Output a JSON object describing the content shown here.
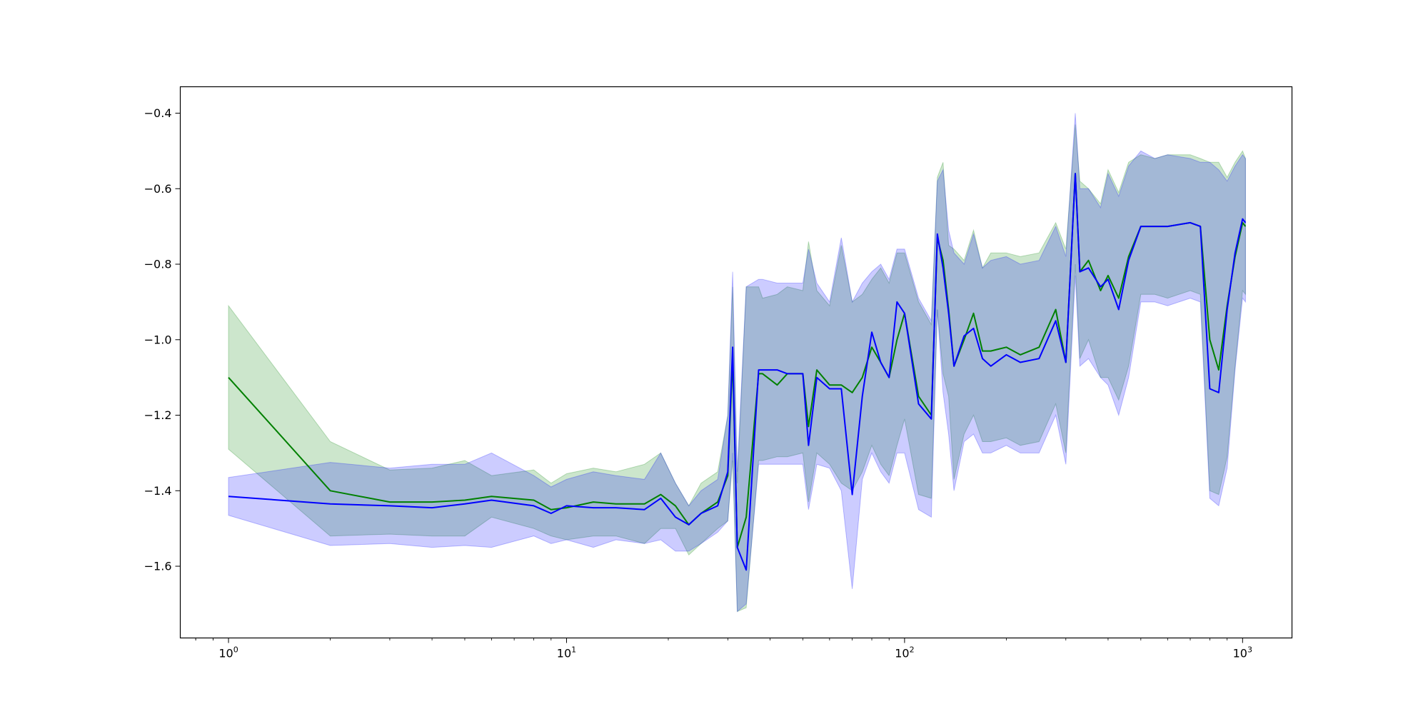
{
  "chart_data": {
    "type": "line",
    "title": "",
    "xlabel": "",
    "ylabel": "",
    "xscale": "log",
    "xlim": [
      0.72,
      1400
    ],
    "ylim": [
      -1.79,
      -0.33
    ],
    "grid": false,
    "x_ticks": [
      {
        "value": 1,
        "base": "10",
        "exp": "0"
      },
      {
        "value": 10,
        "base": "10",
        "exp": "1"
      },
      {
        "value": 100,
        "base": "10",
        "exp": "2"
      },
      {
        "value": 1000,
        "base": "10",
        "exp": "3"
      }
    ],
    "y_ticks": [
      {
        "value": -1.6,
        "label": "−1.6"
      },
      {
        "value": -1.4,
        "label": "−1.4"
      },
      {
        "value": -1.2,
        "label": "−1.2"
      },
      {
        "value": -1.0,
        "label": "−1.0"
      },
      {
        "value": -0.8,
        "label": "−0.8"
      },
      {
        "value": -0.6,
        "label": "−0.6"
      },
      {
        "value": -0.4,
        "label": "−0.4"
      }
    ],
    "series": [
      {
        "color": "#008000",
        "band_color": "#008000",
        "x": [
          1,
          2,
          3,
          4,
          5,
          6,
          8,
          9,
          10,
          12,
          14,
          17,
          19,
          21,
          23,
          25,
          28,
          30,
          31,
          32,
          34,
          37,
          38,
          42,
          45,
          50,
          52,
          55,
          60,
          65,
          70,
          75,
          80,
          85,
          90,
          95,
          100,
          110,
          120,
          125,
          130,
          135,
          140,
          150,
          160,
          170,
          180,
          200,
          220,
          250,
          280,
          300,
          320,
          330,
          350,
          380,
          400,
          430,
          460,
          500,
          550,
          600,
          700,
          750,
          800,
          850,
          900,
          950,
          1000,
          1020
        ],
        "mean": [
          -1.1,
          -1.4,
          -1.43,
          -1.43,
          -1.425,
          -1.415,
          -1.425,
          -1.45,
          -1.445,
          -1.43,
          -1.435,
          -1.435,
          -1.41,
          -1.44,
          -1.49,
          -1.46,
          -1.43,
          -1.36,
          -1.05,
          -1.55,
          -1.47,
          -1.09,
          -1.09,
          -1.12,
          -1.09,
          -1.09,
          -1.23,
          -1.08,
          -1.12,
          -1.12,
          -1.14,
          -1.1,
          -1.02,
          -1.06,
          -1.1,
          -1.0,
          -0.93,
          -1.15,
          -1.2,
          -0.73,
          -0.79,
          -0.92,
          -1.07,
          -1.0,
          -0.93,
          -1.03,
          -1.03,
          -1.02,
          -1.04,
          -1.02,
          -0.92,
          -1.06,
          -0.56,
          -0.82,
          -0.79,
          -0.87,
          -0.83,
          -0.89,
          -0.78,
          -0.7,
          -0.7,
          -0.7,
          -0.69,
          -0.7,
          -1.0,
          -1.08,
          -0.91,
          -0.78,
          -0.69,
          -0.7
        ],
        "upper": [
          -0.91,
          -1.27,
          -1.345,
          -1.34,
          -1.32,
          -1.36,
          -1.345,
          -1.38,
          -1.355,
          -1.34,
          -1.35,
          -1.33,
          -1.3,
          -1.38,
          -1.44,
          -1.38,
          -1.35,
          -1.2,
          -0.86,
          -1.38,
          -0.86,
          -0.86,
          -0.89,
          -0.88,
          -0.86,
          -0.87,
          -0.74,
          -0.87,
          -0.91,
          -0.75,
          -0.9,
          -0.88,
          -0.84,
          -0.81,
          -0.85,
          -0.77,
          -0.77,
          -0.9,
          -0.96,
          -0.57,
          -0.53,
          -0.75,
          -0.76,
          -0.79,
          -0.71,
          -0.81,
          -0.77,
          -0.77,
          -0.78,
          -0.77,
          -0.69,
          -0.76,
          -0.43,
          -0.58,
          -0.6,
          -0.64,
          -0.55,
          -0.61,
          -0.53,
          -0.51,
          -0.52,
          -0.51,
          -0.51,
          -0.52,
          -0.53,
          -0.53,
          -0.57,
          -0.53,
          -0.5,
          -0.52
        ],
        "lower": [
          -1.29,
          -1.52,
          -1.515,
          -1.52,
          -1.52,
          -1.47,
          -1.5,
          -1.52,
          -1.53,
          -1.52,
          -1.52,
          -1.54,
          -1.5,
          -1.5,
          -1.57,
          -1.54,
          -1.5,
          -1.48,
          -1.32,
          -1.72,
          -1.71,
          -1.32,
          -1.32,
          -1.31,
          -1.31,
          -1.3,
          -1.43,
          -1.3,
          -1.33,
          -1.38,
          -1.4,
          -1.35,
          -1.28,
          -1.33,
          -1.36,
          -1.28,
          -1.21,
          -1.41,
          -1.42,
          -0.92,
          -1.09,
          -1.15,
          -1.37,
          -1.25,
          -1.2,
          -1.27,
          -1.27,
          -1.26,
          -1.28,
          -1.27,
          -1.17,
          -1.3,
          -0.8,
          -1.05,
          -1.0,
          -1.1,
          -1.1,
          -1.16,
          -1.07,
          -0.88,
          -0.88,
          -0.89,
          -0.87,
          -0.88,
          -1.4,
          -1.41,
          -1.31,
          -1.07,
          -0.87,
          -0.88
        ]
      },
      {
        "color": "#0000ff",
        "band_color": "#0000ff",
        "x": [
          1,
          2,
          3,
          4,
          5,
          6,
          8,
          9,
          10,
          12,
          14,
          17,
          19,
          21,
          23,
          25,
          28,
          30,
          31,
          32,
          34,
          37,
          38,
          42,
          45,
          50,
          52,
          55,
          60,
          65,
          70,
          75,
          80,
          85,
          90,
          95,
          100,
          110,
          120,
          125,
          130,
          135,
          140,
          150,
          160,
          170,
          180,
          200,
          220,
          250,
          280,
          300,
          320,
          330,
          350,
          380,
          400,
          430,
          460,
          500,
          550,
          600,
          700,
          750,
          800,
          850,
          900,
          950,
          1000,
          1020
        ],
        "mean": [
          -1.415,
          -1.435,
          -1.44,
          -1.445,
          -1.435,
          -1.425,
          -1.44,
          -1.46,
          -1.44,
          -1.445,
          -1.445,
          -1.45,
          -1.42,
          -1.47,
          -1.49,
          -1.46,
          -1.44,
          -1.35,
          -1.02,
          -1.55,
          -1.61,
          -1.08,
          -1.08,
          -1.08,
          -1.09,
          -1.09,
          -1.28,
          -1.1,
          -1.13,
          -1.13,
          -1.41,
          -1.15,
          -0.98,
          -1.06,
          -1.1,
          -0.9,
          -0.93,
          -1.17,
          -1.21,
          -0.72,
          -0.81,
          -0.93,
          -1.07,
          -0.99,
          -0.97,
          -1.05,
          -1.07,
          -1.04,
          -1.06,
          -1.05,
          -0.95,
          -1.06,
          -0.56,
          -0.82,
          -0.81,
          -0.86,
          -0.84,
          -0.92,
          -0.79,
          -0.7,
          -0.7,
          -0.7,
          -0.69,
          -0.7,
          -1.13,
          -1.14,
          -0.92,
          -0.77,
          -0.68,
          -0.69
        ],
        "upper": [
          -1.365,
          -1.325,
          -1.34,
          -1.33,
          -1.33,
          -1.3,
          -1.36,
          -1.39,
          -1.37,
          -1.35,
          -1.36,
          -1.37,
          -1.3,
          -1.38,
          -1.44,
          -1.4,
          -1.37,
          -1.2,
          -0.82,
          -1.35,
          -0.86,
          -0.84,
          -0.84,
          -0.85,
          -0.85,
          -0.85,
          -0.76,
          -0.85,
          -0.9,
          -0.73,
          -0.9,
          -0.85,
          -0.82,
          -0.8,
          -0.84,
          -0.76,
          -0.76,
          -0.89,
          -0.95,
          -0.58,
          -0.55,
          -0.71,
          -0.77,
          -0.8,
          -0.72,
          -0.81,
          -0.79,
          -0.78,
          -0.8,
          -0.79,
          -0.7,
          -0.78,
          -0.4,
          -0.6,
          -0.6,
          -0.65,
          -0.56,
          -0.62,
          -0.54,
          -0.5,
          -0.52,
          -0.51,
          -0.52,
          -0.53,
          -0.53,
          -0.55,
          -0.58,
          -0.54,
          -0.51,
          -0.52
        ],
        "lower": [
          -1.465,
          -1.545,
          -1.54,
          -1.55,
          -1.545,
          -1.55,
          -1.52,
          -1.54,
          -1.53,
          -1.55,
          -1.53,
          -1.54,
          -1.53,
          -1.56,
          -1.56,
          -1.54,
          -1.51,
          -1.48,
          -1.3,
          -1.72,
          -1.7,
          -1.33,
          -1.33,
          -1.33,
          -1.33,
          -1.33,
          -1.45,
          -1.33,
          -1.34,
          -1.4,
          -1.66,
          -1.37,
          -1.3,
          -1.35,
          -1.38,
          -1.3,
          -1.3,
          -1.45,
          -1.47,
          -0.92,
          -1.14,
          -1.25,
          -1.4,
          -1.27,
          -1.25,
          -1.3,
          -1.3,
          -1.28,
          -1.3,
          -1.3,
          -1.2,
          -1.33,
          -0.83,
          -1.07,
          -1.05,
          -1.1,
          -1.12,
          -1.2,
          -1.1,
          -0.9,
          -0.9,
          -0.91,
          -0.89,
          -0.9,
          -1.42,
          -1.44,
          -1.34,
          -1.08,
          -0.89,
          -0.9
        ]
      }
    ]
  }
}
